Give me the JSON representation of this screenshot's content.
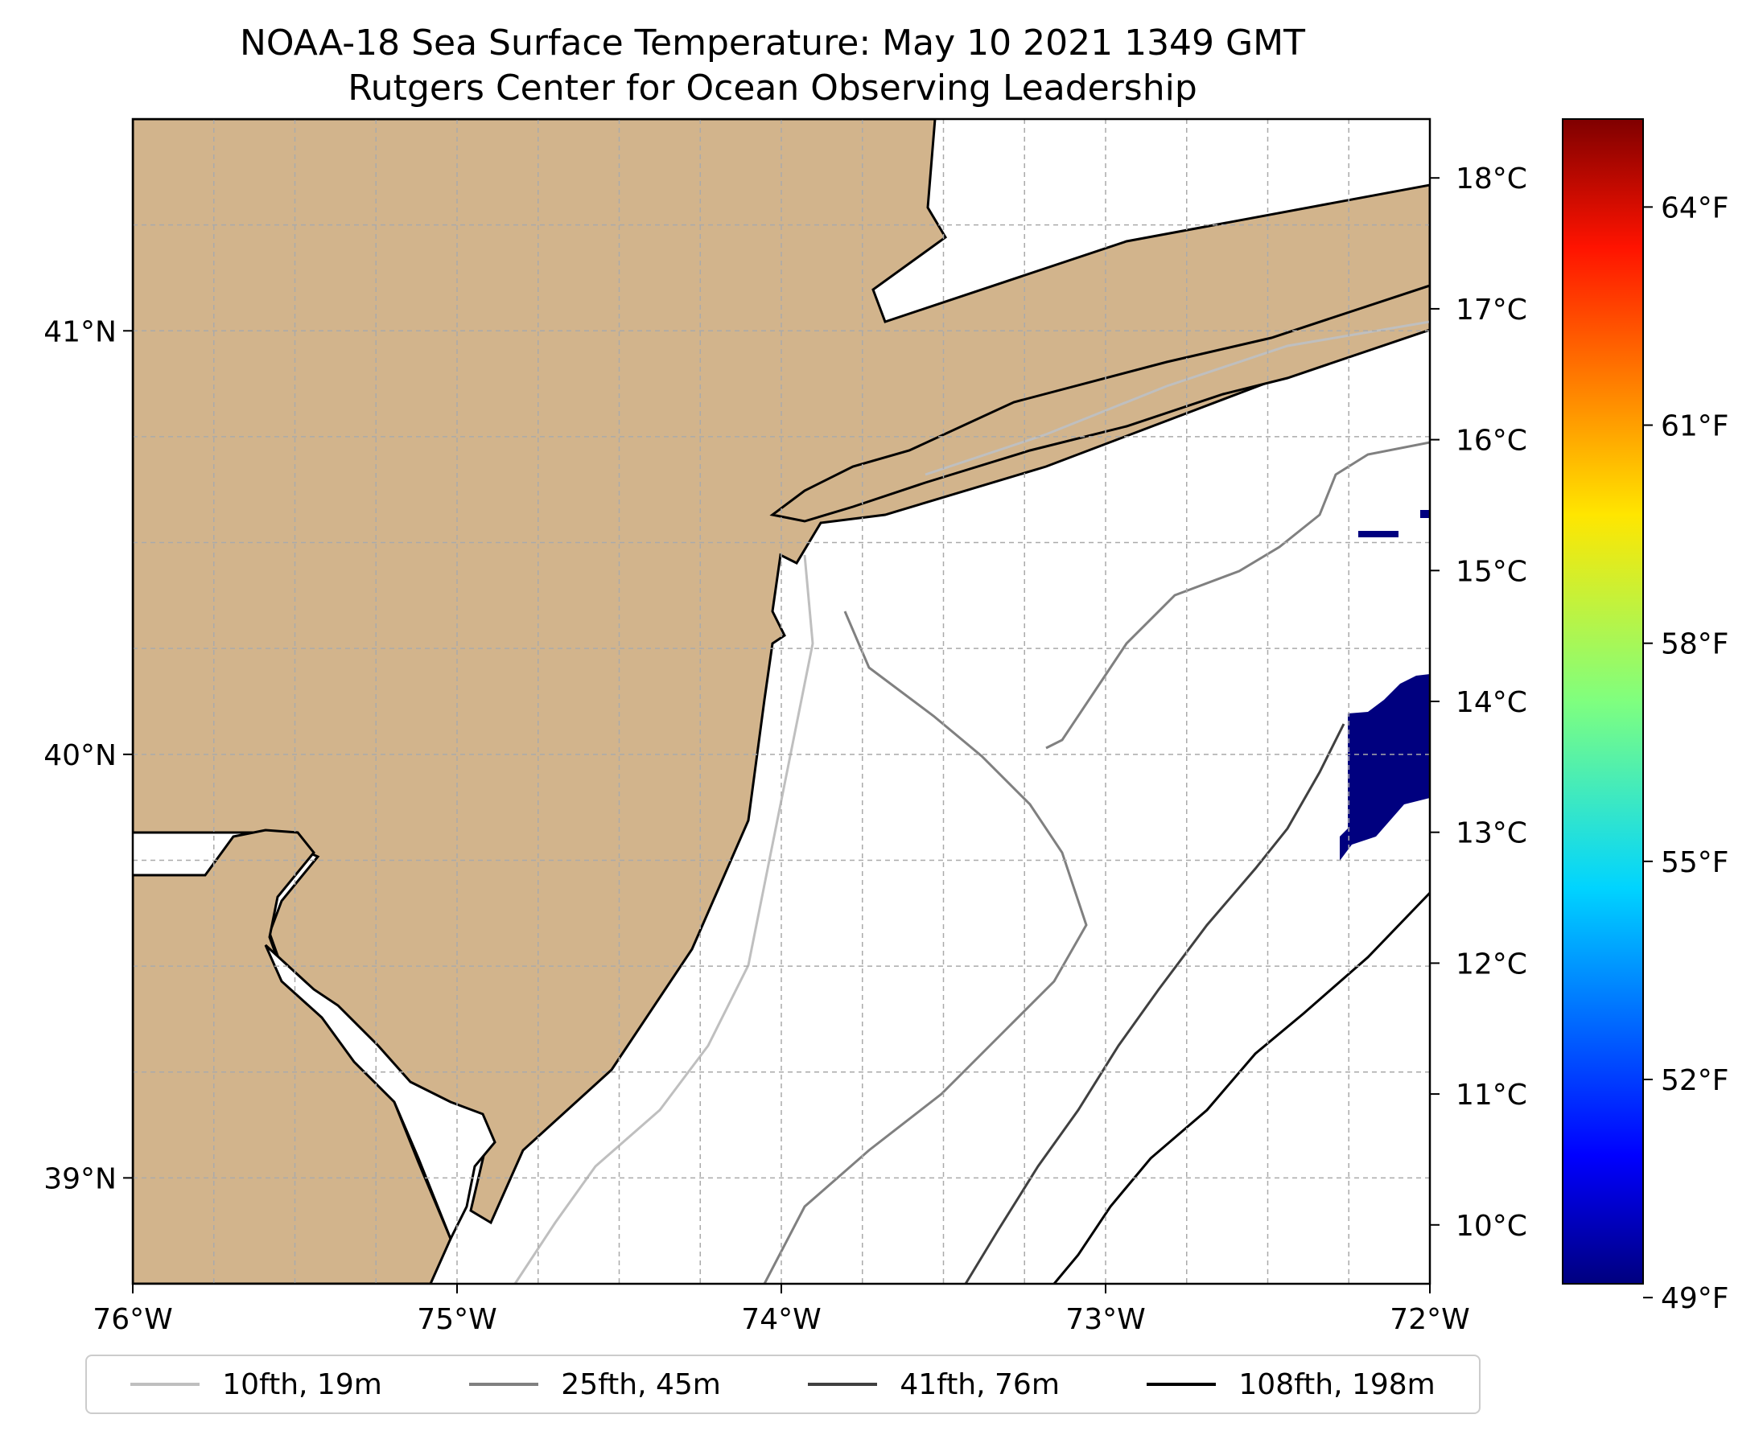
{
  "title": {
    "line1": "NOAA-18 Sea Surface Temperature: May 10 2021 1349 GMT",
    "line2": "Rutgers Center for Ocean Observing Leadership"
  },
  "map": {
    "longitude_ticks": [
      "76°W",
      "75°W",
      "74°W",
      "73°W",
      "72°W"
    ],
    "latitude_ticks": [
      "41°N",
      "40°N",
      "39°N"
    ],
    "lon_range": [
      -76,
      -72
    ],
    "lat_range": [
      38.75,
      41.5
    ],
    "grid": "dashed",
    "land_color": "#d2b48c",
    "water_color": "#ffffff",
    "coast_color": "#000000",
    "sst_pixel_color": "#00007f"
  },
  "colorbar": {
    "celsius_ticks": [
      "18°C",
      "17°C",
      "16°C",
      "15°C",
      "14°C",
      "13°C",
      "12°C",
      "11°C",
      "10°C"
    ],
    "fahrenheit_ticks": [
      "64°F",
      "61°F",
      "58°F",
      "55°F",
      "52°F",
      "49°F"
    ],
    "colormap": "jet"
  },
  "legend": [
    {
      "label": "10fth, 19m",
      "color": "#bfbfbf"
    },
    {
      "label": "25fth, 45m",
      "color": "#808080"
    },
    {
      "label": "41fth, 76m",
      "color": "#404040"
    },
    {
      "label": "108fth, 198m",
      "color": "#000000"
    }
  ]
}
